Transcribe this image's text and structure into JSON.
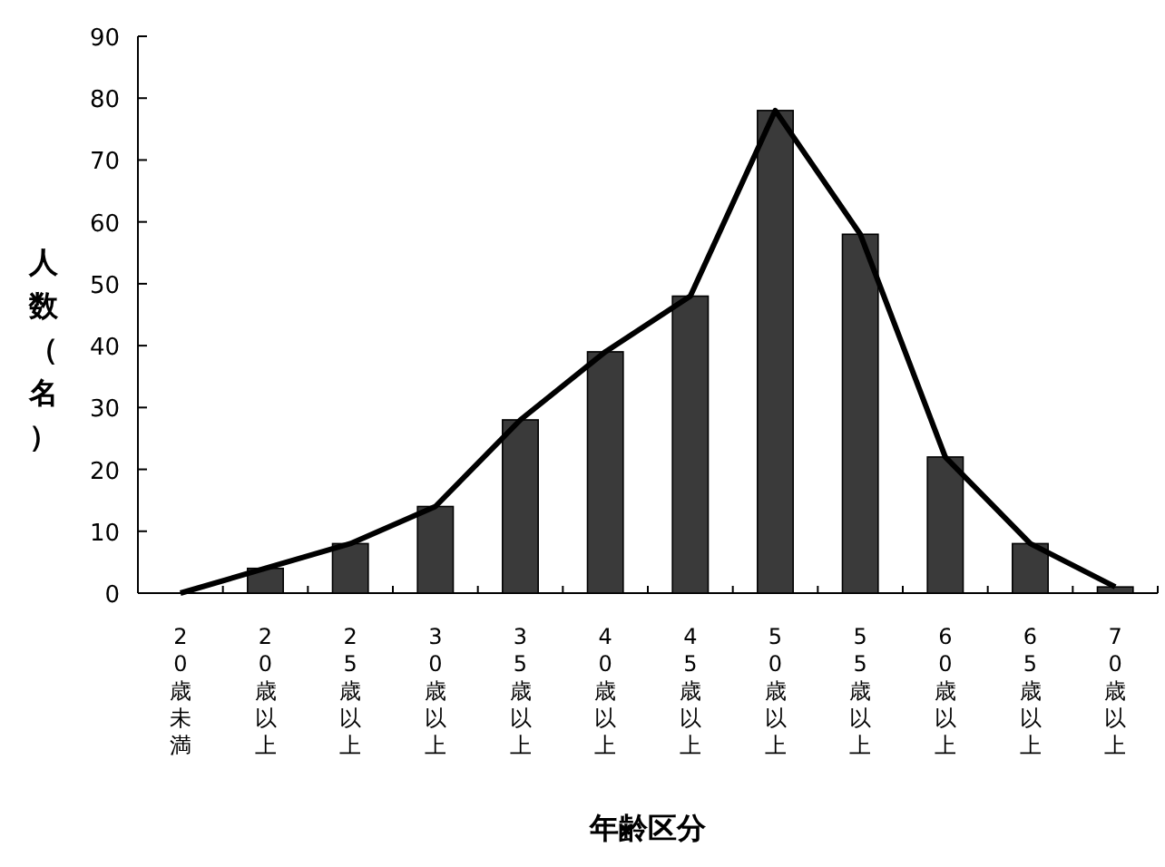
{
  "chart_data": {
    "type": "bar",
    "xlabel": "年齢区分",
    "ylabel": "人数（名）",
    "categories": [
      "20歳未満",
      "20歳以上",
      "25歳以上",
      "30歳以上",
      "35歳以上",
      "40歳以上",
      "45歳以上",
      "50歳以上",
      "55歳以上",
      "60歳以上",
      "65歳以上",
      "70歳以上"
    ],
    "series": [
      {
        "color": "#3a3a3a",
        "values": [
          0,
          4,
          8,
          14,
          28,
          39,
          48,
          78,
          58,
          22,
          8,
          1
        ]
      },
      {
        "type": "line",
        "color": "#000000",
        "values": [
          0,
          4,
          8,
          14,
          28,
          39,
          48,
          78,
          58,
          22,
          8,
          1
        ]
      }
    ],
    "ylim": [
      0,
      90
    ],
    "yticks": [
      0,
      10,
      20,
      30,
      40,
      50,
      60,
      70,
      80,
      90
    ],
    "grid": false,
    "marker": "none",
    "line_style": "solid"
  }
}
